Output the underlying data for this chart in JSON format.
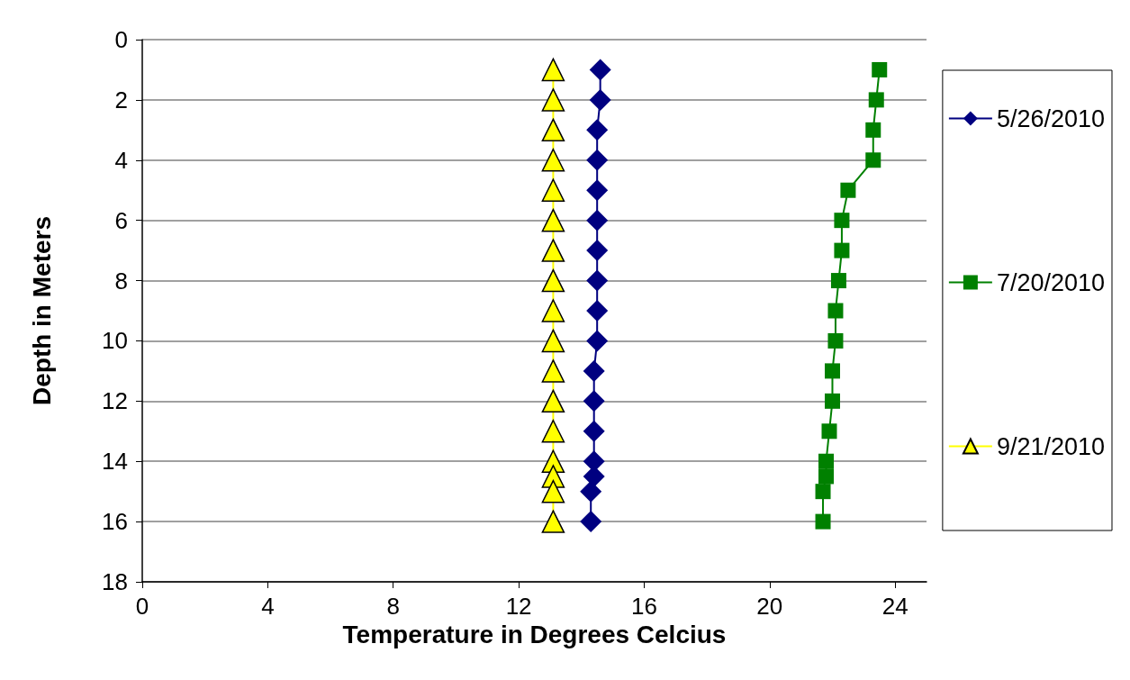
{
  "chart_data": {
    "type": "line",
    "xlabel": "Temperature in Degrees Celcius",
    "ylabel": "Depth in Meters",
    "xlim": [
      0,
      25
    ],
    "xticks": [
      0,
      4,
      8,
      12,
      16,
      20,
      24
    ],
    "ylim": [
      18,
      0
    ],
    "yticks": [
      0,
      2,
      4,
      6,
      8,
      10,
      12,
      14,
      16,
      18
    ],
    "grid": "y",
    "legend": "right",
    "line_style": "solid",
    "series": [
      {
        "name": "5/26/2010",
        "color": "#000080",
        "marker": "diamond",
        "x": [
          14.6,
          14.6,
          14.5,
          14.5,
          14.5,
          14.5,
          14.5,
          14.5,
          14.5,
          14.5,
          14.4,
          14.4,
          14.4,
          14.4,
          14.4,
          14.3,
          14.3
        ],
        "values": [
          1,
          2,
          3,
          4,
          5,
          6,
          7,
          8,
          9,
          10,
          11,
          12,
          13,
          14,
          14.5,
          15,
          16
        ]
      },
      {
        "name": "7/20/2010",
        "color": "#008000",
        "marker": "square",
        "x": [
          23.5,
          23.4,
          23.3,
          23.3,
          22.5,
          22.3,
          22.3,
          22.2,
          22.1,
          22.1,
          22.0,
          22.0,
          21.9,
          21.8,
          21.8,
          21.7,
          21.7
        ],
        "values": [
          1,
          2,
          3,
          4,
          5,
          6,
          7,
          8,
          9,
          10,
          11,
          12,
          13,
          14,
          14.5,
          15,
          16
        ]
      },
      {
        "name": "9/21/2010",
        "color": "#ffff00",
        "marker": "triangle",
        "x": [
          13.1,
          13.1,
          13.1,
          13.1,
          13.1,
          13.1,
          13.1,
          13.1,
          13.1,
          13.1,
          13.1,
          13.1,
          13.1,
          13.1,
          13.1,
          13.1,
          13.1
        ],
        "values": [
          1,
          2,
          3,
          4,
          5,
          6,
          7,
          8,
          9,
          10,
          11,
          12,
          13,
          14,
          14.5,
          15,
          16
        ]
      }
    ]
  }
}
